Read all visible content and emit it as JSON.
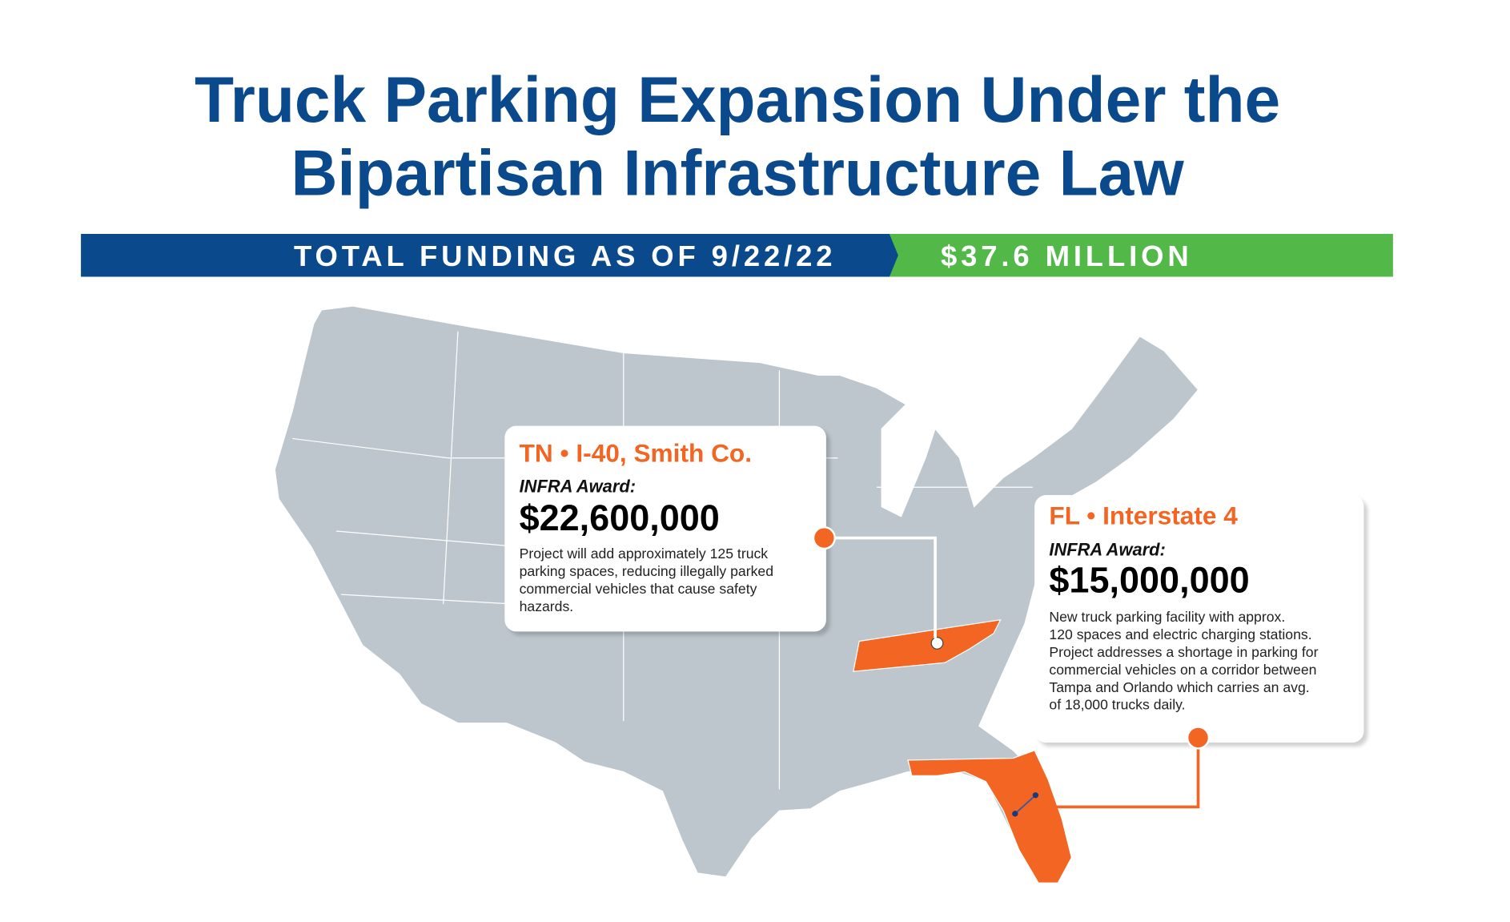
{
  "header": {
    "title_lines": [
      "Truck Parking Expansion Under the",
      "Bipartisan Infrastructure Law"
    ]
  },
  "banner": {
    "label": "TOTAL FUNDING AS OF 9/22/22",
    "amount": "$37.6 MILLION"
  },
  "callouts": [
    {
      "heading": "TN • I-40, Smith Co.",
      "award_label": "INFRA Award:",
      "amount": "$22,600,000",
      "description_lines": [
        "Project will add approximately 125 truck",
        "parking spaces, reducing illegally parked",
        "commercial vehicles that cause safety",
        "hazards."
      ]
    },
    {
      "heading": "FL • Interstate 4",
      "award_label": "INFRA Award:",
      "amount": "$15,000,000",
      "description_lines": [
        "New truck parking facility with approx.",
        "120 spaces and electric charging stations.",
        "Project addresses a shortage in parking for",
        "commercial vehicles on a corridor between",
        "Tampa and Orlando which carries an avg.",
        "of 18,000 trucks daily."
      ]
    }
  ]
}
